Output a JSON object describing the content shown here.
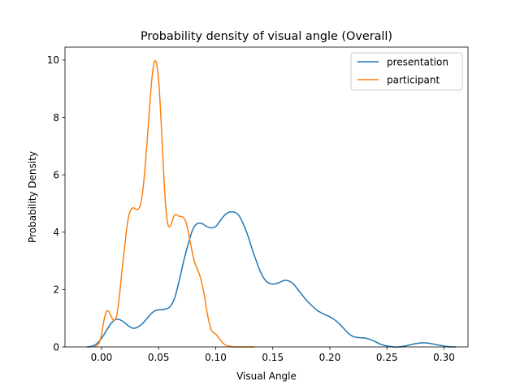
{
  "chart_data": {
    "type": "line",
    "title": "Probability density of visual angle (Overall)",
    "xlabel": "Visual Angle",
    "ylabel": "Probability Density",
    "xlim": [
      -0.032,
      0.321
    ],
    "ylim": [
      0,
      10.45
    ],
    "xticks": [
      0.0,
      0.05,
      0.1,
      0.15,
      0.2,
      0.25,
      0.3
    ],
    "xtick_labels": [
      "0.00",
      "0.05",
      "0.10",
      "0.15",
      "0.20",
      "0.25",
      "0.30"
    ],
    "yticks": [
      0,
      2,
      4,
      6,
      8,
      10
    ],
    "ytick_labels": [
      "0",
      "2",
      "4",
      "6",
      "8",
      "10"
    ],
    "grid": false,
    "legend_position": "top-right",
    "series": [
      {
        "name": "presentation",
        "color": "#1f77b4",
        "x": [
          -0.0125,
          -0.008,
          -0.004,
          0.0,
          0.004,
          0.008,
          0.012,
          0.016,
          0.02,
          0.024,
          0.028,
          0.032,
          0.036,
          0.04,
          0.044,
          0.048,
          0.052,
          0.056,
          0.06,
          0.064,
          0.068,
          0.072,
          0.076,
          0.08,
          0.084,
          0.088,
          0.092,
          0.096,
          0.1,
          0.104,
          0.108,
          0.112,
          0.116,
          0.12,
          0.124,
          0.128,
          0.132,
          0.136,
          0.14,
          0.144,
          0.148,
          0.152,
          0.156,
          0.16,
          0.164,
          0.168,
          0.172,
          0.176,
          0.18,
          0.184,
          0.188,
          0.192,
          0.196,
          0.2,
          0.204,
          0.208,
          0.212,
          0.216,
          0.22,
          0.224,
          0.228,
          0.232,
          0.236,
          0.24,
          0.244,
          0.248,
          0.252,
          0.256,
          0.26,
          0.264,
          0.268,
          0.272,
          0.276,
          0.28,
          0.284,
          0.288,
          0.292,
          0.296,
          0.3,
          0.304,
          0.308,
          0.31
        ],
        "y": [
          0.0,
          0.03,
          0.12,
          0.3,
          0.55,
          0.8,
          0.95,
          0.95,
          0.85,
          0.72,
          0.65,
          0.7,
          0.82,
          1.0,
          1.18,
          1.28,
          1.3,
          1.32,
          1.4,
          1.7,
          2.3,
          3.0,
          3.6,
          4.1,
          4.3,
          4.3,
          4.2,
          4.15,
          4.2,
          4.4,
          4.6,
          4.7,
          4.7,
          4.6,
          4.3,
          3.9,
          3.4,
          2.95,
          2.55,
          2.3,
          2.2,
          2.2,
          2.25,
          2.32,
          2.3,
          2.2,
          2.0,
          1.8,
          1.6,
          1.45,
          1.3,
          1.2,
          1.12,
          1.05,
          0.95,
          0.82,
          0.65,
          0.48,
          0.37,
          0.33,
          0.32,
          0.3,
          0.25,
          0.18,
          0.1,
          0.05,
          0.02,
          0.0,
          0.0,
          0.02,
          0.05,
          0.09,
          0.12,
          0.14,
          0.14,
          0.12,
          0.09,
          0.06,
          0.03,
          0.01,
          0.0,
          0.0
        ]
      },
      {
        "name": "participant",
        "color": "#ff7f0e",
        "x": [
          -0.006,
          -0.002,
          0.0,
          0.002,
          0.004,
          0.006,
          0.008,
          0.01,
          0.012,
          0.014,
          0.016,
          0.018,
          0.02,
          0.022,
          0.024,
          0.026,
          0.028,
          0.03,
          0.032,
          0.034,
          0.036,
          0.038,
          0.04,
          0.042,
          0.044,
          0.046,
          0.048,
          0.05,
          0.052,
          0.054,
          0.056,
          0.058,
          0.06,
          0.062,
          0.064,
          0.066,
          0.068,
          0.07,
          0.072,
          0.074,
          0.076,
          0.078,
          0.08,
          0.082,
          0.084,
          0.086,
          0.088,
          0.09,
          0.092,
          0.094,
          0.096,
          0.098,
          0.1,
          0.102,
          0.104,
          0.106,
          0.108,
          0.11,
          0.112,
          0.114,
          0.116,
          0.118,
          0.12,
          0.122,
          0.124,
          0.126,
          0.128,
          0.13,
          0.132,
          0.134
        ],
        "y": [
          0.0,
          0.15,
          0.45,
          0.9,
          1.22,
          1.25,
          1.1,
          0.95,
          0.95,
          1.25,
          1.9,
          2.7,
          3.4,
          4.1,
          4.6,
          4.8,
          4.85,
          4.8,
          4.8,
          4.95,
          5.4,
          6.2,
          7.2,
          8.3,
          9.3,
          9.9,
          9.9,
          9.3,
          8.0,
          6.4,
          5.0,
          4.3,
          4.2,
          4.4,
          4.6,
          4.6,
          4.55,
          4.55,
          4.5,
          4.35,
          4.0,
          3.6,
          3.2,
          2.9,
          2.7,
          2.5,
          2.2,
          1.8,
          1.3,
          0.9,
          0.6,
          0.5,
          0.45,
          0.35,
          0.25,
          0.15,
          0.08,
          0.04,
          0.02,
          0.01,
          0.0,
          0.0,
          0.0,
          0.0,
          0.0,
          0.0,
          0.0,
          0.0,
          0.0,
          0.0
        ]
      }
    ]
  }
}
